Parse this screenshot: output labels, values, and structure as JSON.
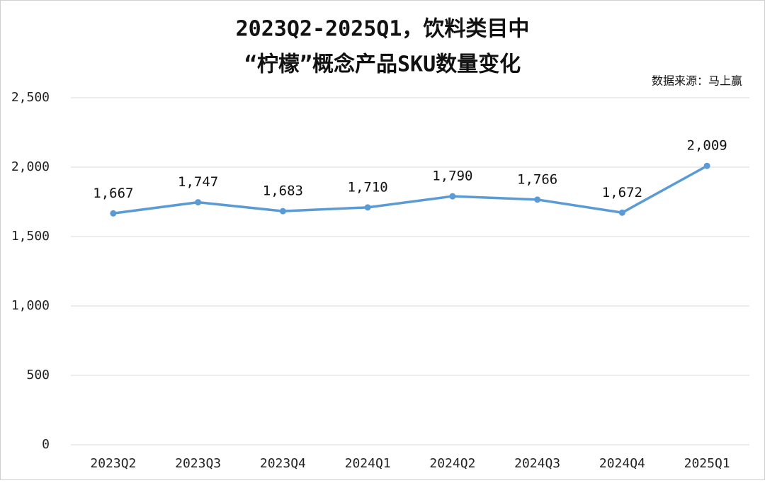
{
  "chart_data": {
    "type": "line",
    "title": [
      "2023Q2-2025Q1，饮料类目中",
      "“柠檬”概念产品SKU数量变化"
    ],
    "source": "数据来源：马上赢",
    "categories": [
      "2023Q2",
      "2023Q3",
      "2023Q4",
      "2024Q1",
      "2024Q2",
      "2024Q3",
      "2024Q4",
      "2025Q1"
    ],
    "values": [
      1667,
      1747,
      1683,
      1710,
      1790,
      1766,
      1672,
      2009
    ],
    "value_labels": [
      "1,667",
      "1,747",
      "1,683",
      "1,710",
      "1,790",
      "1,766",
      "1,672",
      "2,009"
    ],
    "color": "#5b9bd5",
    "ylim": [
      0,
      2500
    ],
    "yticks": [
      0,
      500,
      {
        "value": 1000,
        "label": "1,000"
      },
      {
        "value": 1500,
        "label": "1,500"
      },
      {
        "value": 2000,
        "label": "2,000"
      },
      {
        "value": 2500,
        "label": "2,500"
      }
    ],
    "grid": true
  }
}
